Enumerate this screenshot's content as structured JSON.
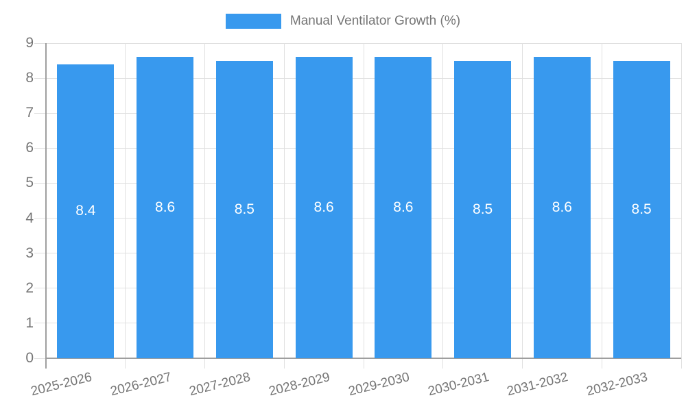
{
  "legend": {
    "label": "Manual Ventilator Growth (%)"
  },
  "chart_data": {
    "type": "bar",
    "title": "Manual Ventilator Growth (%)",
    "categories": [
      "2025-2026",
      "2026-2027",
      "2027-2028",
      "2028-2029",
      "2029-2030",
      "2030-2031",
      "2031-2032",
      "2032-2033"
    ],
    "values": [
      8.4,
      8.6,
      8.5,
      8.6,
      8.6,
      8.5,
      8.6,
      8.5
    ],
    "value_labels": [
      "8.4",
      "8.6",
      "8.5",
      "8.6",
      "8.6",
      "8.5",
      "8.6",
      "8.5"
    ],
    "y_ticks": [
      0,
      1,
      2,
      3,
      4,
      5,
      6,
      7,
      8,
      9
    ],
    "ylim": [
      0,
      9
    ],
    "xlabel": "",
    "ylabel": "",
    "grid": true,
    "legend_position": "top-center",
    "bar_color": "#3899ee",
    "value_label_color": "#ffffff",
    "axis_text_color": "#757575",
    "gridline_color": "#e0e0e0",
    "axis_line_color": "#9e9e9e"
  }
}
